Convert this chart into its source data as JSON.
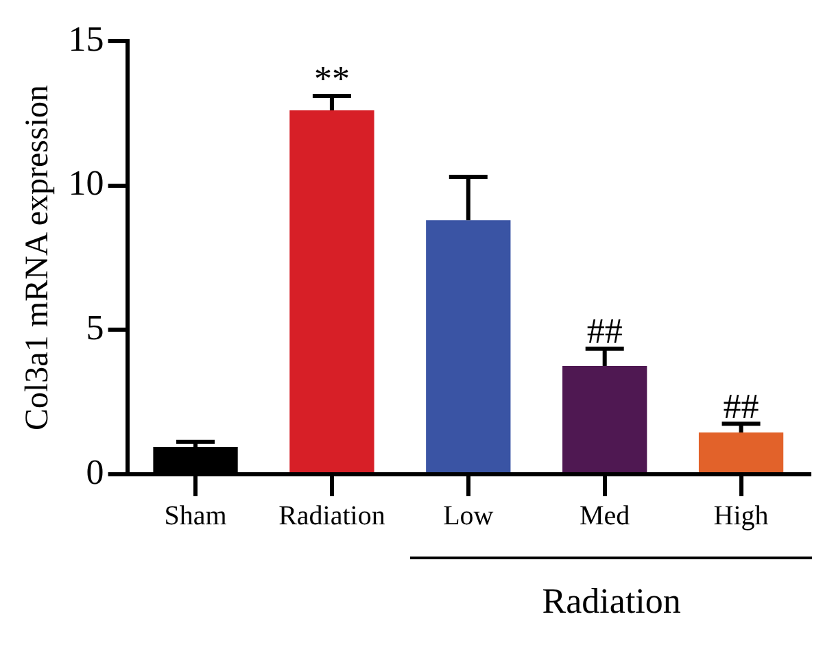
{
  "chart_data": {
    "type": "bar",
    "ylabel": "Col3a1 mRNA expression",
    "categories": [
      "Sham",
      "Radiation",
      "Low",
      "Med",
      "High"
    ],
    "values": [
      0.95,
      12.6,
      8.8,
      3.75,
      1.45
    ],
    "errors": [
      0.17,
      0.5,
      1.5,
      0.6,
      0.3
    ],
    "colors": [
      "#000000",
      "#d71f27",
      "#3a54a4",
      "#4f1852",
      "#e2622a"
    ],
    "ylim": [
      0,
      15
    ],
    "yticks": [
      0,
      5,
      10,
      15
    ],
    "grid": false,
    "legend": false,
    "annotations": [
      {
        "text": "**",
        "x": "Radiation",
        "y": 13.1
      },
      {
        "text": "##",
        "x": "Med",
        "y": 4.35
      },
      {
        "text": "##",
        "x": "High",
        "y": 1.75
      },
      "Radiation"
    ]
  }
}
